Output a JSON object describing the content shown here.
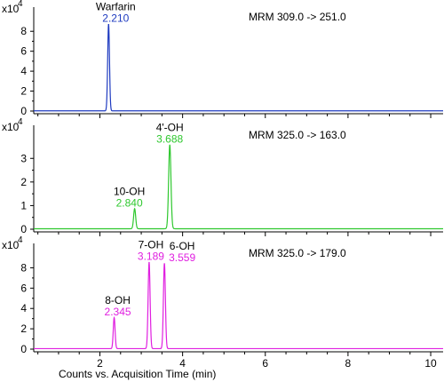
{
  "chart_data": [
    {
      "type": "line",
      "scale_label": "x10",
      "scale_exponent": "4",
      "transition": "MRM 309.0 -> 251.0",
      "ylim": [
        0,
        9
      ],
      "yticks": [
        0,
        2,
        4,
        6,
        8
      ],
      "xlim": [
        0.4,
        10.3
      ],
      "series": [
        {
          "color": "#1f3bc0",
          "baseline": 0.02,
          "peaks": [
            {
              "name": "Warfarin",
              "rt": "2.210",
              "x": 2.21,
              "height": 8.7,
              "sigma": 0.022,
              "name_color": "#000000",
              "rt_color": "#1f3bc0"
            }
          ]
        }
      ]
    },
    {
      "type": "line",
      "scale_label": "x10",
      "scale_exponent": "4",
      "transition": "MRM 325.0 -> 163.0",
      "ylim": [
        0,
        3.8
      ],
      "yticks": [
        0,
        1,
        2,
        3
      ],
      "xlim": [
        0.4,
        10.3
      ],
      "series": [
        {
          "color": "#2ec82e",
          "baseline": 0.02,
          "peaks": [
            {
              "name": "10-OH",
              "rt": "2.840",
              "x": 2.84,
              "height": 0.85,
              "sigma": 0.025,
              "name_color": "#000000",
              "rt_color": "#2ec82e"
            },
            {
              "name": "4'-OH",
              "rt": "3.688",
              "x": 3.69,
              "height": 3.55,
              "sigma": 0.028,
              "name_color": "#000000",
              "rt_color": "#2ec82e"
            }
          ]
        }
      ]
    },
    {
      "type": "line",
      "scale_label": "x10",
      "scale_exponent": "4",
      "transition": "MRM 325.0 -> 179.0",
      "ylim": [
        0,
        9
      ],
      "yticks": [
        0,
        2,
        4,
        6,
        8
      ],
      "xlim": [
        0.4,
        10.3
      ],
      "xticks": [
        2,
        4,
        6,
        8,
        10
      ],
      "xlabel": "Counts vs. Acquisition Time (min)",
      "series": [
        {
          "color": "#e020e0",
          "baseline": 0.05,
          "peaks": [
            {
              "name": "8-OH",
              "rt": "2.345",
              "x": 2.345,
              "height": 3.05,
              "sigma": 0.022,
              "name_color": "#000000",
              "rt_color": "#e020e0"
            },
            {
              "name": "7-OH",
              "rt": "3.189",
              "x": 3.19,
              "height": 8.5,
              "sigma": 0.024,
              "name_color": "#000000",
              "rt_color": "#e020e0"
            },
            {
              "name": "6-OH",
              "rt": "3.559",
              "x": 3.56,
              "height": 8.4,
              "sigma": 0.024,
              "name_color": "#000000",
              "rt_color": "#e020e0"
            }
          ]
        }
      ]
    }
  ]
}
